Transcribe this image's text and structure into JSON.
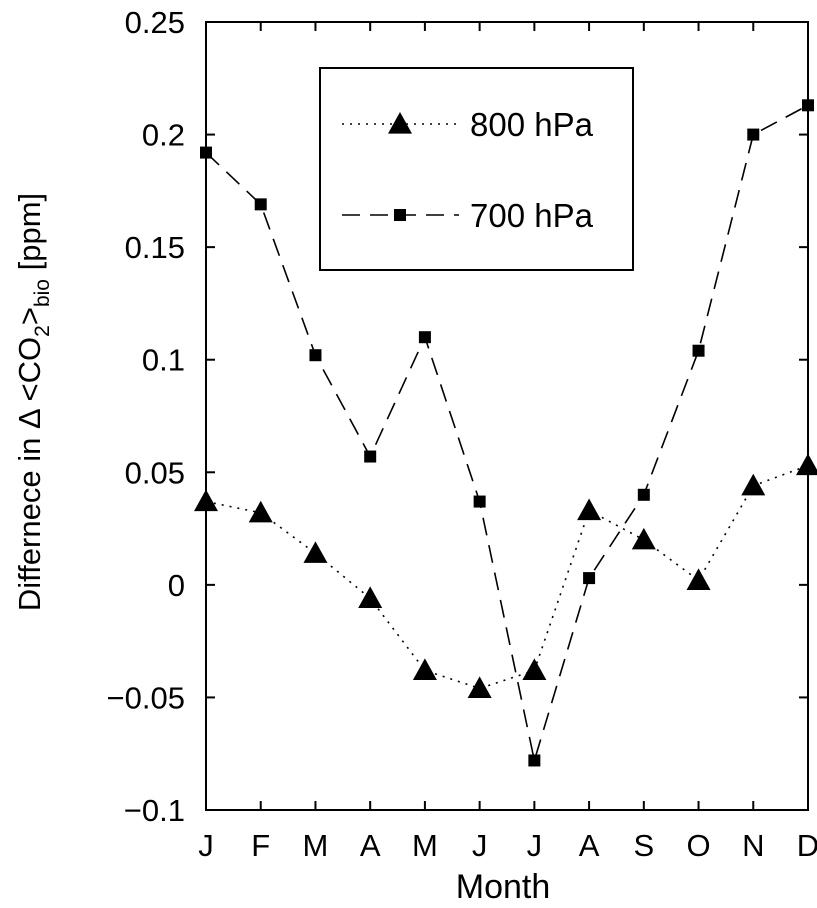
{
  "chart_data": {
    "type": "line",
    "xlabel": "Month",
    "ylabel_parts": {
      "prefix": "Differnece in Δ <CO",
      "sub1": "2",
      "mid": ">",
      "sub2": "bio",
      "suffix": " [ppm]"
    },
    "categories": [
      "J",
      "F",
      "M",
      "A",
      "M",
      "J",
      "J",
      "A",
      "S",
      "O",
      "N",
      "D"
    ],
    "ylim": [
      -0.1,
      0.25
    ],
    "yticks": [
      -0.1,
      -0.05,
      0,
      0.05,
      0.1,
      0.15,
      0.2,
      0.25
    ],
    "ytick_labels": [
      "−0.1",
      "−0.05",
      "0",
      "0.05",
      "0.1",
      "0.15",
      "0.2",
      "0.25"
    ],
    "grid": false,
    "legend_position": "top-center",
    "series": [
      {
        "name": "800 hPa",
        "marker": "triangle",
        "line_style": "dotted",
        "color": "#000000",
        "values": [
          0.037,
          0.032,
          0.014,
          -0.006,
          -0.038,
          -0.046,
          -0.038,
          0.033,
          0.02,
          0.002,
          0.044,
          0.053
        ]
      },
      {
        "name": "700 hPa",
        "marker": "square",
        "line_style": "dashed",
        "color": "#000000",
        "values": [
          0.192,
          0.169,
          0.102,
          0.057,
          0.11,
          0.037,
          -0.078,
          0.003,
          0.04,
          0.104,
          0.2,
          0.213
        ]
      }
    ]
  }
}
